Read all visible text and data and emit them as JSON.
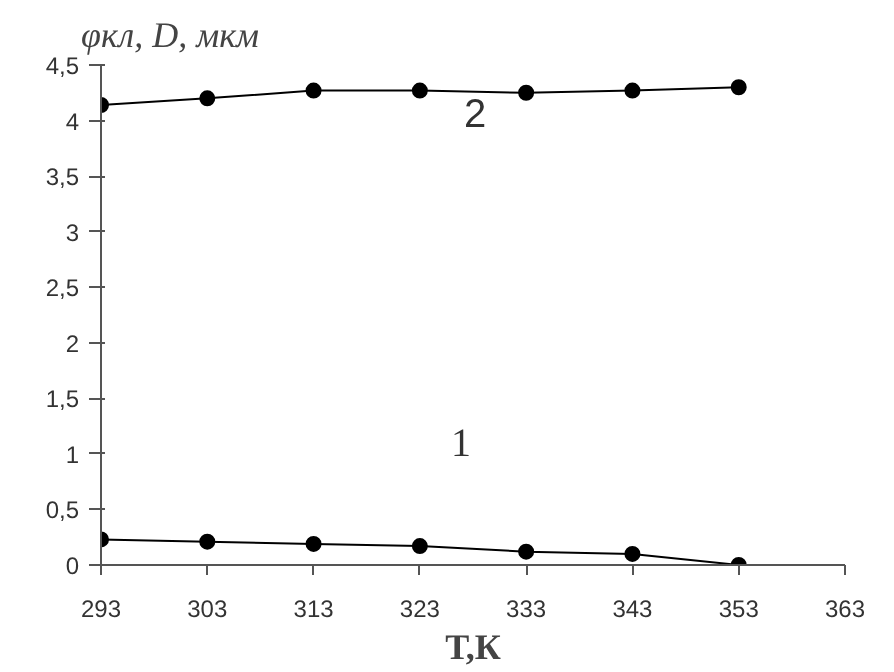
{
  "chart_data": {
    "type": "line",
    "xlabel": "Т,К",
    "ylabel": "φкл, D, мкм",
    "x": [
      293,
      303,
      313,
      323,
      333,
      343,
      353
    ],
    "series": [
      {
        "name": "1",
        "color": "#000000",
        "values": [
          0.23,
          0.21,
          0.19,
          0.17,
          0.12,
          0.1,
          0.0
        ]
      },
      {
        "name": "2",
        "color": "#000000",
        "values": [
          4.14,
          4.2,
          4.27,
          4.27,
          4.25,
          4.27,
          4.3
        ]
      }
    ],
    "xlim": [
      293,
      363
    ],
    "xticks": [
      293,
      303,
      313,
      323,
      333,
      343,
      353,
      363
    ],
    "ylim": [
      0,
      4.5
    ],
    "yticks": [
      {
        "value": 0,
        "label": "0"
      },
      {
        "value": 0.5,
        "label": "0,5"
      },
      {
        "value": 1,
        "label": "1"
      },
      {
        "value": 1.5,
        "label": "1,5"
      },
      {
        "value": 2,
        "label": "2"
      },
      {
        "value": 2.5,
        "label": "2,5"
      },
      {
        "value": 3,
        "label": "3"
      },
      {
        "value": 3.5,
        "label": "3,5"
      },
      {
        "value": 4,
        "label": "4"
      },
      {
        "value": 4.5,
        "label": "4,5"
      }
    ],
    "grid": false,
    "marker": "circle",
    "line_style": "solid"
  }
}
